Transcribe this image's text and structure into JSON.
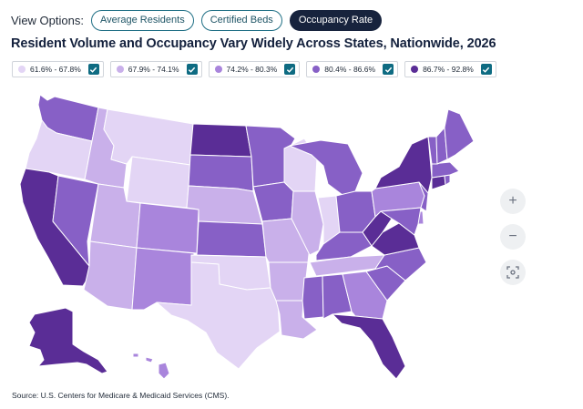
{
  "view_options": {
    "label": "View Options:",
    "buttons": [
      {
        "label": "Average Residents",
        "active": false
      },
      {
        "label": "Certified Beds",
        "active": false
      },
      {
        "label": "Occupancy Rate",
        "active": true
      }
    ]
  },
  "title": "Resident Volume and Occupancy Vary Widely Across States, Nationwide, 2026",
  "legend": [
    {
      "label": "61.6% - 67.8%",
      "color": "#e3d5f5",
      "checked": true
    },
    {
      "label": "67.9% - 74.1%",
      "color": "#c9b0ea",
      "checked": true
    },
    {
      "label": "74.2% - 80.3%",
      "color": "#a985dc",
      "checked": true
    },
    {
      "label": "80.4% - 86.6%",
      "color": "#8760c6",
      "checked": true
    },
    {
      "label": "86.7% - 92.8%",
      "color": "#5a2d96",
      "checked": true
    }
  ],
  "zoom_controls": {
    "zoom_in": "+",
    "zoom_out": "−",
    "reset_icon": "fit-screen-icon"
  },
  "source": "Source: U.S. Centers for Medicare & Medicaid Services (CMS).",
  "state_fill_classes": {
    "WA": 3,
    "OR": 0,
    "CA": 4,
    "NV": 3,
    "ID": 1,
    "MT": 0,
    "WY": 0,
    "UT": 1,
    "AZ": 1,
    "CO": 2,
    "NM": 2,
    "ND": 4,
    "SD": 3,
    "NE": 1,
    "KS": 3,
    "OK": 0,
    "TX": 0,
    "MN": 3,
    "IA": 3,
    "MO": 1,
    "AR": 1,
    "LA": 1,
    "WI": 0,
    "IL": 1,
    "IN": 0,
    "MI": 3,
    "OH": 3,
    "KY": 3,
    "TN": 1,
    "MS": 3,
    "AL": 3,
    "GA": 2,
    "FL": 4,
    "SC": 3,
    "NC": 3,
    "VA": 4,
    "WV": 4,
    "PA": 2,
    "NY": 4,
    "VT": 3,
    "NH": 3,
    "ME": 3,
    "MA": 3,
    "RI": 3,
    "CT": 4,
    "NJ": 3,
    "DE": 2,
    "MD": 3,
    "AK": 4,
    "HI": 2
  }
}
